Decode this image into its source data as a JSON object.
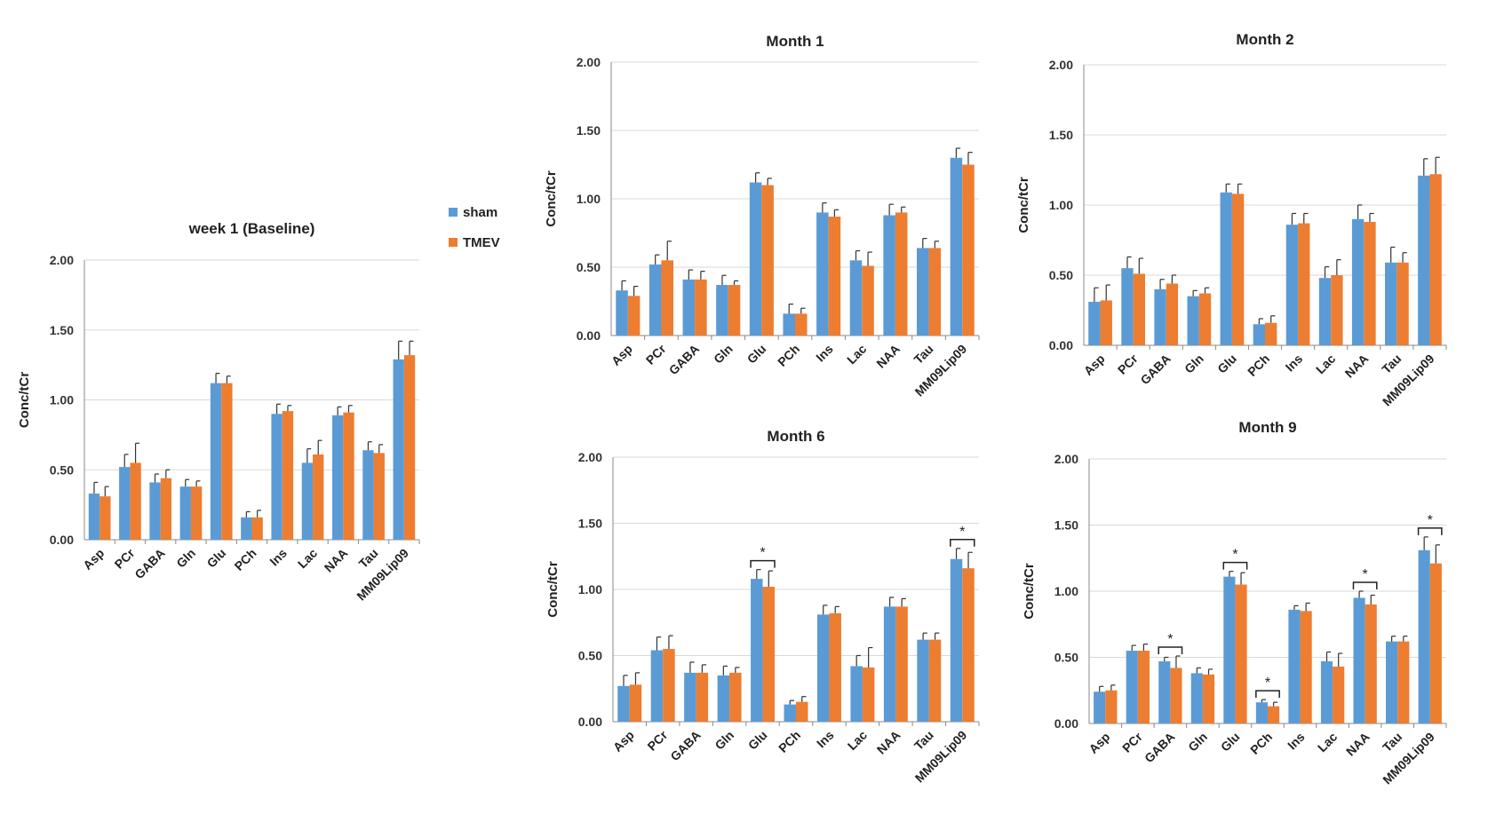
{
  "legend": {
    "sham_label": "sham",
    "tmev_label": "TMEV",
    "sham_color": "#5B9BD5",
    "tmev_color": "#ED7D31"
  },
  "chart_data": [
    {
      "type": "bar",
      "title": "week 1 (Baseline)",
      "ylabel": "Conc/tCr",
      "xlabel": "",
      "ylim": [
        0,
        2
      ],
      "yticks": [
        "0.00",
        "0.50",
        "1.00",
        "1.50",
        "2.00"
      ],
      "grid": true,
      "categories": [
        "Asp",
        "PCr",
        "GABA",
        "Gln",
        "Glu",
        "PCh",
        "Ins",
        "Lac",
        "NAA",
        "Tau",
        "MM09Lip09"
      ],
      "series": [
        {
          "name": "sham",
          "values": [
            0.33,
            0.52,
            0.41,
            0.38,
            1.12,
            0.16,
            0.9,
            0.55,
            0.89,
            0.64,
            1.29
          ],
          "errors": [
            0.08,
            0.09,
            0.06,
            0.05,
            0.07,
            0.04,
            0.07,
            0.1,
            0.06,
            0.06,
            0.13
          ]
        },
        {
          "name": "TMEV",
          "values": [
            0.31,
            0.55,
            0.44,
            0.38,
            1.12,
            0.16,
            0.92,
            0.61,
            0.91,
            0.62,
            1.32
          ],
          "errors": [
            0.07,
            0.14,
            0.06,
            0.04,
            0.05,
            0.05,
            0.04,
            0.1,
            0.05,
            0.06,
            0.1
          ]
        }
      ],
      "significant": []
    },
    {
      "type": "bar",
      "title": "Month 1",
      "ylabel": "Conc/tCr",
      "xlabel": "",
      "ylim": [
        0,
        2
      ],
      "yticks": [
        "0.00",
        "0.50",
        "1.00",
        "1.50",
        "2.00"
      ],
      "grid": true,
      "categories": [
        "Asp",
        "PCr",
        "GABA",
        "Gln",
        "Glu",
        "PCh",
        "Ins",
        "Lac",
        "NAA",
        "Tau",
        "MM09Lip09"
      ],
      "series": [
        {
          "name": "sham",
          "values": [
            0.33,
            0.52,
            0.41,
            0.37,
            1.12,
            0.16,
            0.9,
            0.55,
            0.88,
            0.64,
            1.3
          ],
          "errors": [
            0.07,
            0.07,
            0.07,
            0.07,
            0.07,
            0.07,
            0.07,
            0.07,
            0.08,
            0.07,
            0.07
          ]
        },
        {
          "name": "TMEV",
          "values": [
            0.29,
            0.55,
            0.41,
            0.37,
            1.1,
            0.16,
            0.87,
            0.51,
            0.9,
            0.64,
            1.25
          ],
          "errors": [
            0.07,
            0.14,
            0.06,
            0.03,
            0.05,
            0.04,
            0.05,
            0.1,
            0.04,
            0.05,
            0.09
          ]
        }
      ],
      "significant": []
    },
    {
      "type": "bar",
      "title": "Month 2",
      "ylabel": "Conc/tCr",
      "xlabel": "",
      "ylim": [
        0,
        2
      ],
      "yticks": [
        "0.00",
        "0.50",
        "1.00",
        "1.50",
        "2.00"
      ],
      "grid": true,
      "categories": [
        "Asp",
        "PCr",
        "GABA",
        "Gln",
        "Glu",
        "PCh",
        "Ins",
        "Lac",
        "NAA",
        "Tau",
        "MM09Lip09"
      ],
      "series": [
        {
          "name": "sham",
          "values": [
            0.31,
            0.55,
            0.4,
            0.35,
            1.09,
            0.15,
            0.86,
            0.48,
            0.9,
            0.59,
            1.21
          ],
          "errors": [
            0.1,
            0.08,
            0.07,
            0.04,
            0.06,
            0.04,
            0.08,
            0.08,
            0.1,
            0.11,
            0.12
          ]
        },
        {
          "name": "TMEV",
          "values": [
            0.32,
            0.51,
            0.44,
            0.37,
            1.08,
            0.16,
            0.87,
            0.5,
            0.88,
            0.59,
            1.22
          ],
          "errors": [
            0.11,
            0.11,
            0.06,
            0.04,
            0.07,
            0.05,
            0.07,
            0.11,
            0.06,
            0.07,
            0.12
          ]
        }
      ],
      "significant": []
    },
    {
      "type": "bar",
      "title": "Month 6",
      "ylabel": "Conc/tCr",
      "xlabel": "",
      "ylim": [
        0,
        2
      ],
      "yticks": [
        "0.00",
        "0.50",
        "1.00",
        "1.50",
        "2.00"
      ],
      "grid": true,
      "categories": [
        "Asp",
        "PCr",
        "GABA",
        "Gln",
        "Glu",
        "PCh",
        "Ins",
        "Lac",
        "NAA",
        "Tau",
        "MM09Lip09"
      ],
      "series": [
        {
          "name": "sham",
          "values": [
            0.27,
            0.54,
            0.37,
            0.35,
            1.08,
            0.13,
            0.81,
            0.42,
            0.87,
            0.62,
            1.23
          ],
          "errors": [
            0.08,
            0.1,
            0.08,
            0.07,
            0.07,
            0.03,
            0.07,
            0.08,
            0.07,
            0.05,
            0.08
          ]
        },
        {
          "name": "TMEV",
          "values": [
            0.28,
            0.55,
            0.37,
            0.37,
            1.02,
            0.15,
            0.82,
            0.41,
            0.87,
            0.62,
            1.16
          ],
          "errors": [
            0.09,
            0.1,
            0.06,
            0.04,
            0.12,
            0.04,
            0.05,
            0.15,
            0.06,
            0.05,
            0.12
          ]
        }
      ],
      "significant": [
        {
          "category": "Glu",
          "label": "*"
        },
        {
          "category": "MM09Lip09",
          "label": "*"
        }
      ]
    },
    {
      "type": "bar",
      "title": "Month 9",
      "ylabel": "Conc/tCr",
      "xlabel": "",
      "ylim": [
        0,
        2
      ],
      "yticks": [
        "0.00",
        "0.50",
        "1.00",
        "1.50",
        "2.00"
      ],
      "grid": true,
      "categories": [
        "Asp",
        "PCr",
        "GABA",
        "Gln",
        "Glu",
        "PCh",
        "Ins",
        "Lac",
        "NAA",
        "Tau",
        "MM09Lip09"
      ],
      "series": [
        {
          "name": "sham",
          "values": [
            0.24,
            0.55,
            0.47,
            0.38,
            1.11,
            0.16,
            0.86,
            0.47,
            0.95,
            0.62,
            1.31
          ],
          "errors": [
            0.04,
            0.04,
            0.03,
            0.04,
            0.04,
            0.02,
            0.03,
            0.07,
            0.05,
            0.04,
            0.1
          ]
        },
        {
          "name": "TMEV",
          "values": [
            0.25,
            0.55,
            0.42,
            0.37,
            1.05,
            0.13,
            0.85,
            0.43,
            0.9,
            0.62,
            1.21
          ],
          "errors": [
            0.04,
            0.05,
            0.09,
            0.04,
            0.09,
            0.03,
            0.06,
            0.1,
            0.07,
            0.04,
            0.14
          ]
        }
      ],
      "significant": [
        {
          "category": "GABA",
          "label": "*"
        },
        {
          "category": "Glu",
          "label": "*"
        },
        {
          "category": "PCh",
          "label": "*"
        },
        {
          "category": "NAA",
          "label": "*"
        },
        {
          "category": "MM09Lip09",
          "label": "*"
        }
      ]
    }
  ]
}
